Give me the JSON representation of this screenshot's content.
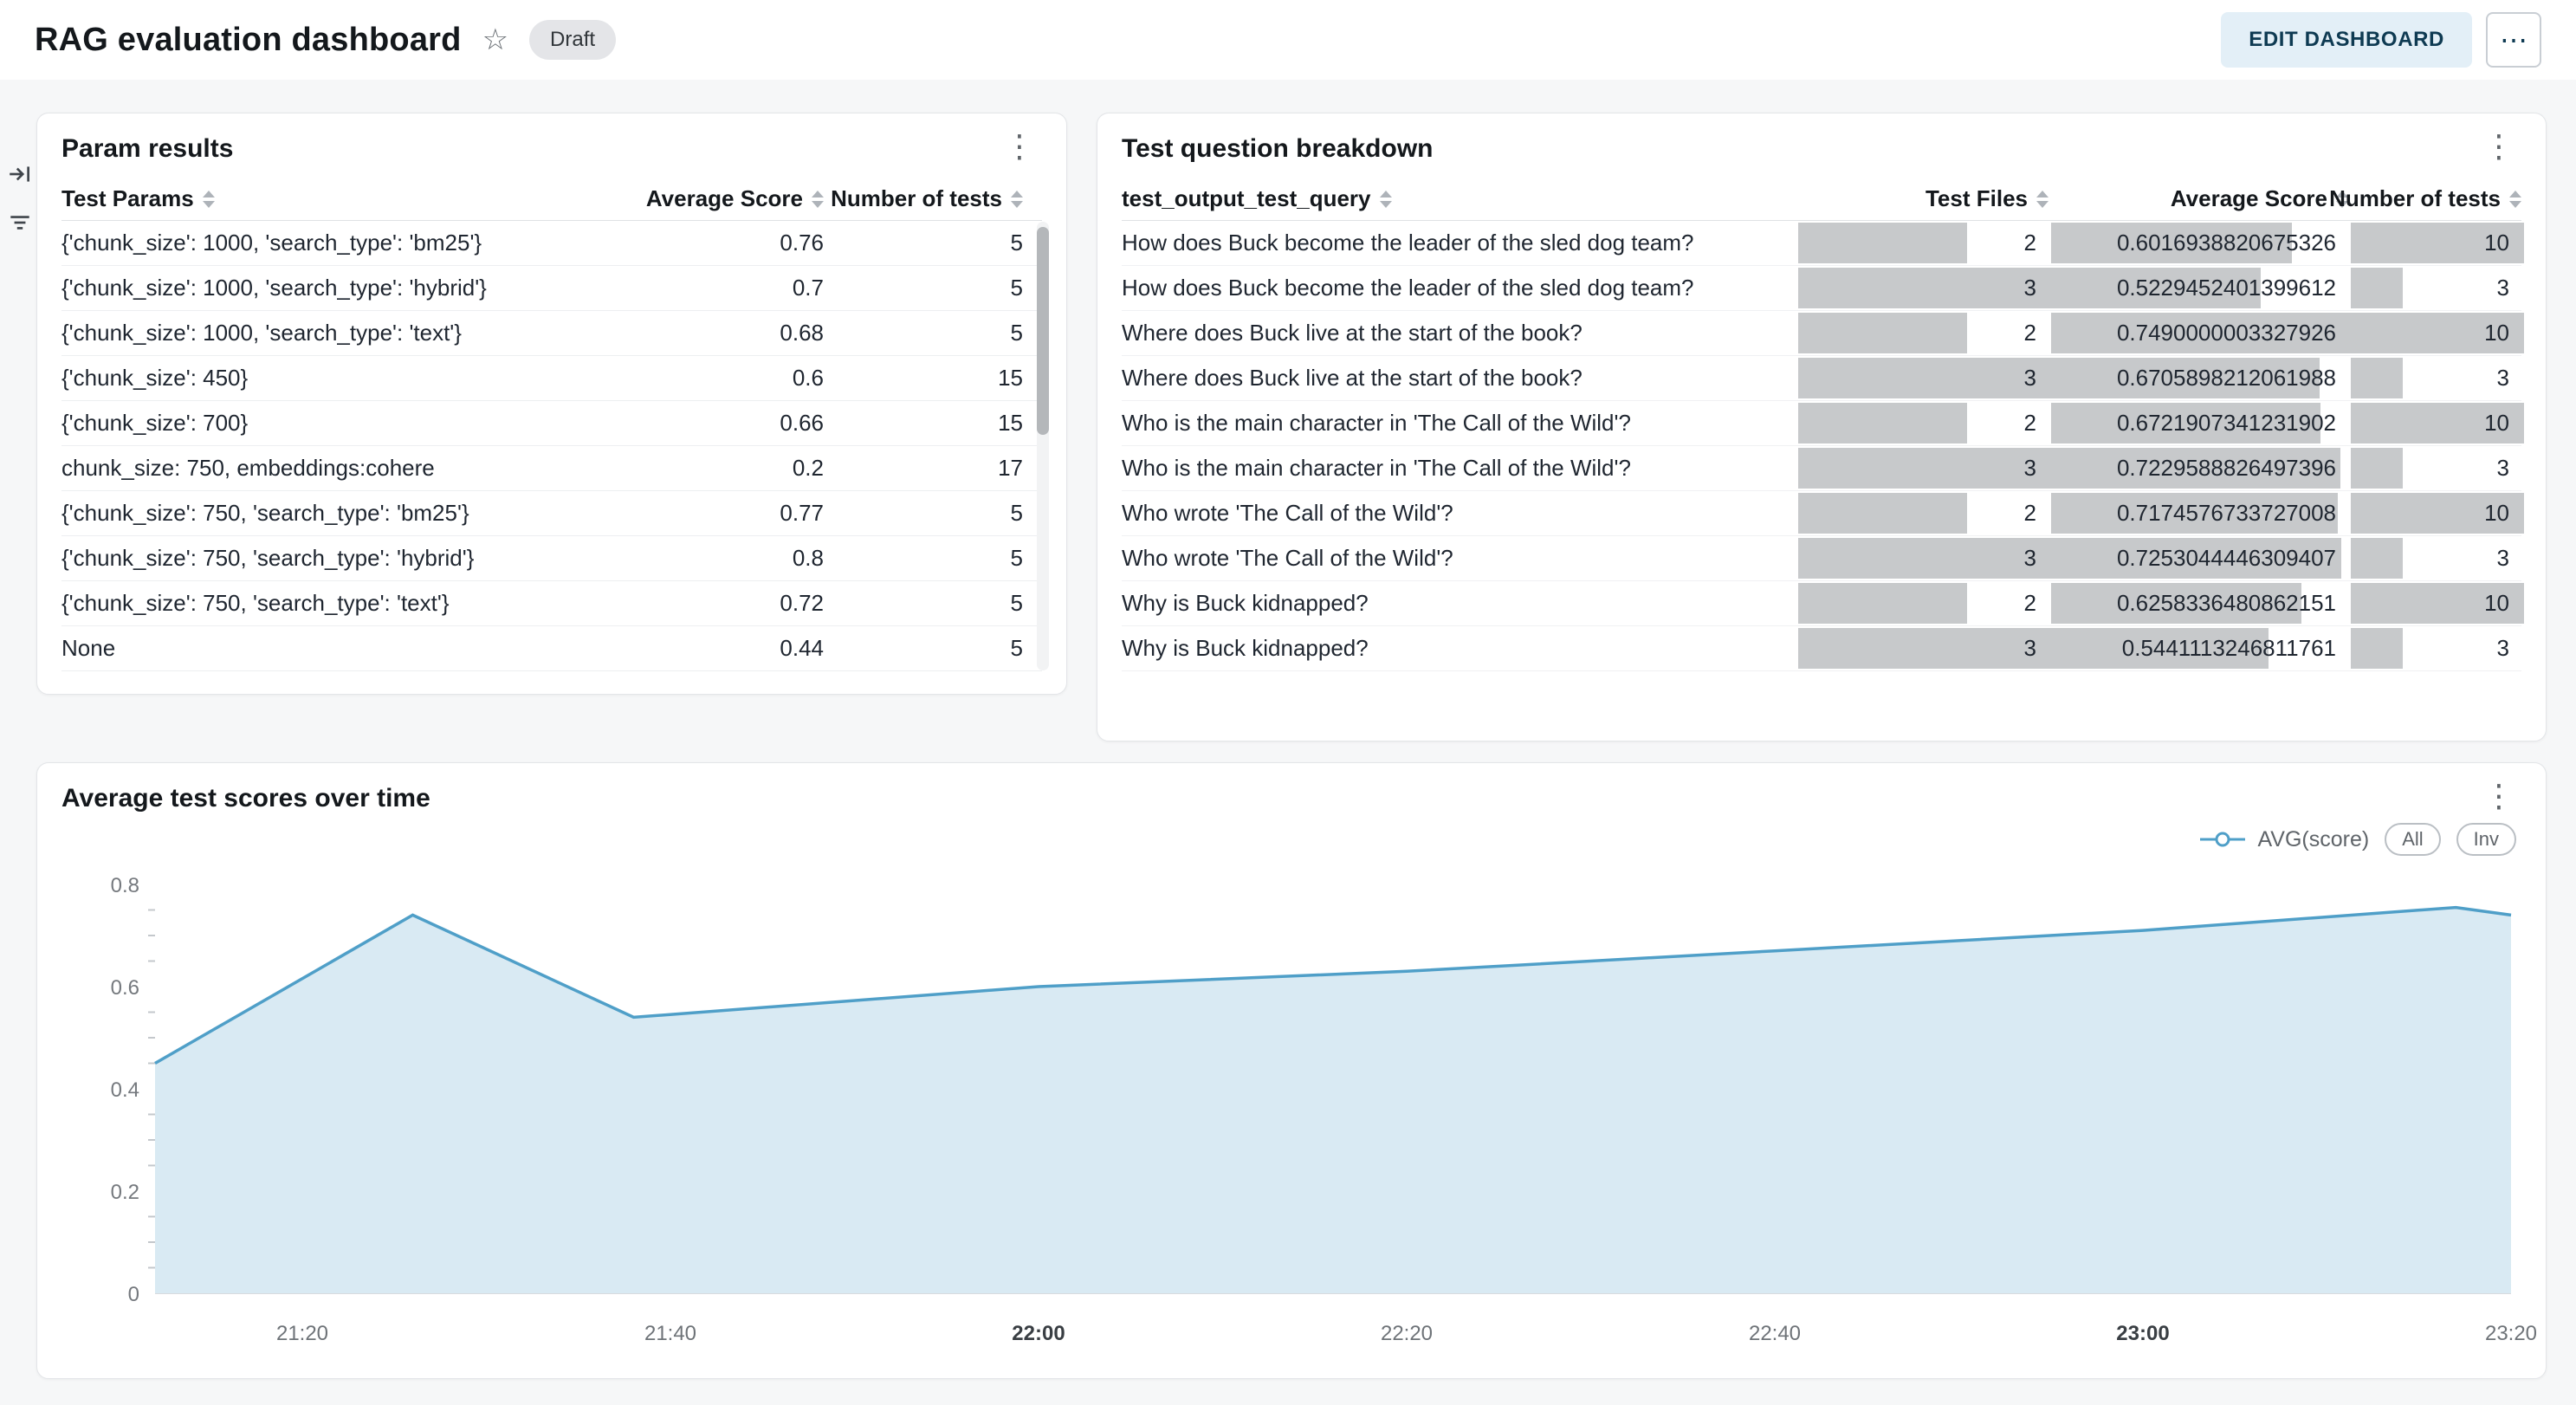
{
  "header": {
    "title": "RAG evaluation dashboard",
    "status_badge": "Draft",
    "edit_button": "EDIT DASHBOARD"
  },
  "icons": {
    "star": "☆",
    "kebab": "⋮",
    "ellipsis": "⋯"
  },
  "param_results": {
    "title": "Param results",
    "columns": [
      "Test Params",
      "Average Score",
      "Number of tests"
    ],
    "rows": [
      [
        "{'chunk_size': 1000, 'search_type': 'bm25'}",
        "0.76",
        "5"
      ],
      [
        "{'chunk_size': 1000, 'search_type': 'hybrid'}",
        "0.7",
        "5"
      ],
      [
        "{'chunk_size': 1000, 'search_type': 'text'}",
        "0.68",
        "5"
      ],
      [
        "{'chunk_size': 450}",
        "0.6",
        "15"
      ],
      [
        "{'chunk_size': 700}",
        "0.66",
        "15"
      ],
      [
        "chunk_size: 750, embeddings:cohere",
        "0.2",
        "17"
      ],
      [
        "{'chunk_size': 750, 'search_type': 'bm25'}",
        "0.77",
        "5"
      ],
      [
        "{'chunk_size': 750, 'search_type': 'hybrid'}",
        "0.8",
        "5"
      ],
      [
        "{'chunk_size': 750, 'search_type': 'text'}",
        "0.72",
        "5"
      ],
      [
        "None",
        "0.44",
        "5"
      ]
    ]
  },
  "question_breakdown": {
    "title": "Test question breakdown",
    "columns": [
      "test_output_test_query",
      "Test Files",
      "Average Score",
      "Number of tests"
    ],
    "rows": [
      {
        "query": "How does Buck become the leader of the sled dog team?",
        "test_files": 2,
        "avg_score": "0.6016938820675326",
        "num_tests": 10
      },
      {
        "query": "How does Buck become the leader of the sled dog team?",
        "test_files": 3,
        "avg_score": "0.5229452401399612",
        "num_tests": 3
      },
      {
        "query": "Where does Buck live at the start of the book?",
        "test_files": 2,
        "avg_score": "0.7490000003327926",
        "num_tests": 10
      },
      {
        "query": "Where does Buck live at the start of the book?",
        "test_files": 3,
        "avg_score": "0.6705898212061988",
        "num_tests": 3
      },
      {
        "query": "Who is the main character in 'The Call of the Wild'?",
        "test_files": 2,
        "avg_score": "0.6721907341231902",
        "num_tests": 10
      },
      {
        "query": "Who is the main character in 'The Call of the Wild'?",
        "test_files": 3,
        "avg_score": "0.7229588826497396",
        "num_tests": 3
      },
      {
        "query": "Who wrote 'The Call of the Wild'?",
        "test_files": 2,
        "avg_score": "0.7174576733727008",
        "num_tests": 10
      },
      {
        "query": "Who wrote 'The Call of the Wild'?",
        "test_files": 3,
        "avg_score": "0.7253044446309407",
        "num_tests": 3
      },
      {
        "query": "Why is Buck kidnapped?",
        "test_files": 2,
        "avg_score": "0.6258336480862151",
        "num_tests": 10
      },
      {
        "query": "Why is Buck kidnapped?",
        "test_files": 3,
        "avg_score": "0.5441113246811761",
        "num_tests": 3
      }
    ]
  },
  "chart_panel": {
    "title": "Average test scores over time",
    "legend": {
      "series_label": "AVG(score)",
      "all_button": "All",
      "inv_button": "Inv"
    }
  },
  "chart_data": {
    "type": "area",
    "title": "Average test scores over time",
    "series": [
      {
        "name": "AVG(score)",
        "points": [
          [
            "21:12",
            0.45
          ],
          [
            "21:26",
            0.74
          ],
          [
            "21:38",
            0.54
          ],
          [
            "22:00",
            0.6
          ],
          [
            "22:20",
            0.63
          ],
          [
            "22:40",
            0.67
          ],
          [
            "23:00",
            0.71
          ],
          [
            "23:17",
            0.755
          ],
          [
            "23:20",
            0.74
          ]
        ]
      }
    ],
    "x_range": [
      "21:12",
      "23:20"
    ],
    "x_ticks": [
      "21:20",
      "21:40",
      "22:00",
      "22:20",
      "22:40",
      "23:00",
      "23:20"
    ],
    "x_ticks_bold": [
      "22:00",
      "23:00"
    ],
    "y_ticks": [
      0,
      0.2,
      0.4,
      0.6,
      0.8
    ],
    "y_minor_step": 0.05,
    "ylim": [
      0,
      0.8
    ],
    "line_color": "#4f9fc8",
    "area_color": "#d9eaf3",
    "legend_position": "top-right",
    "grid": false
  },
  "colors": {
    "accent": "#4f9fc8",
    "edit_button_bg": "#e3eff7",
    "edit_button_text": "#0e3a52",
    "bar_fill": "#c7c9cb",
    "panel_bg": "#ffffff",
    "page_bg": "#f6f7f8"
  }
}
